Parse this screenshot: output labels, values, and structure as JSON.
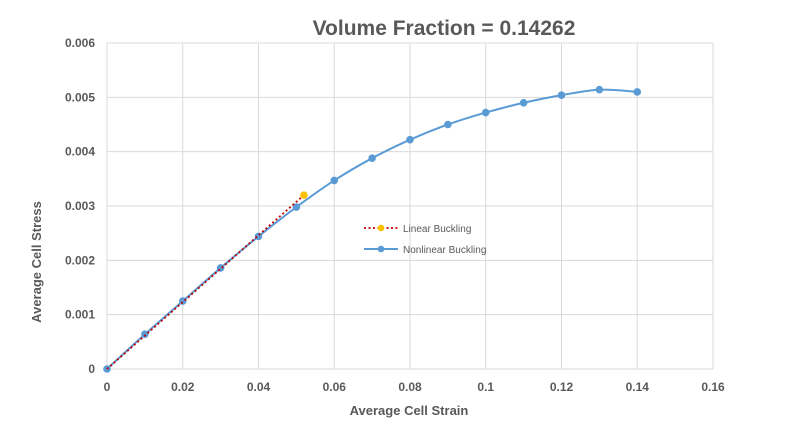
{
  "chart_data": {
    "type": "line",
    "title": "Volume Fraction = 0.14262",
    "xlabel": "Average Cell Strain",
    "ylabel": "Average Cell Stress",
    "xlim": [
      0,
      0.16
    ],
    "ylim": [
      0,
      0.006
    ],
    "xticks": [
      "0",
      "0.02",
      "0.04",
      "0.06",
      "0.08",
      "0.1",
      "0.12",
      "0.14",
      "0.16"
    ],
    "yticks": [
      "0",
      "0.001",
      "0.002",
      "0.003",
      "0.004",
      "0.005",
      "0.006"
    ],
    "grid": true,
    "legend_position": "center",
    "series": [
      {
        "name": "Linear Buckling",
        "color": "#ED7D31",
        "line_color": "#C00000",
        "marker_color": "#FFC000",
        "line_style": "dotted",
        "markers": "last",
        "x": [
          0,
          0.052
        ],
        "y": [
          0,
          0.0032
        ]
      },
      {
        "name": "Nonlinear Buckling",
        "color": "#5B9BD5",
        "line_style": "solid",
        "markers": "all",
        "x": [
          0,
          0.01,
          0.02,
          0.03,
          0.04,
          0.05,
          0.06,
          0.07,
          0.08,
          0.09,
          0.1,
          0.11,
          0.12,
          0.13,
          0.14
        ],
        "y": [
          0,
          0.00064,
          0.00125,
          0.00186,
          0.00244,
          0.00298,
          0.00347,
          0.00388,
          0.00422,
          0.0045,
          0.00472,
          0.0049,
          0.00504,
          0.00514,
          0.0051
        ]
      }
    ]
  }
}
